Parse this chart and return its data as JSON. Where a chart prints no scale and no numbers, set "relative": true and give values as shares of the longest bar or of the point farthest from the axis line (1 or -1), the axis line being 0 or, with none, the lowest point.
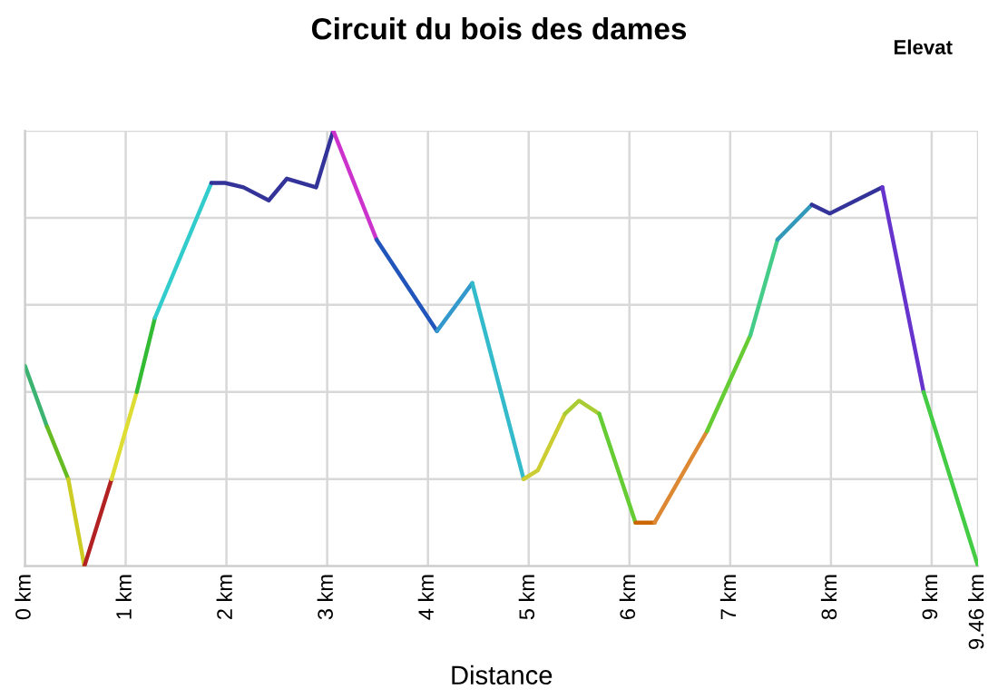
{
  "chart_data": {
    "type": "line",
    "title": "Circuit du bois des dames",
    "xlabel": "Distance",
    "annotations": [
      "Elevat"
    ],
    "relative": true,
    "series": [
      {
        "color": "#3cb371",
        "x": [
          0,
          0.22
        ],
        "values": [
          0.46,
          0.32
        ]
      },
      {
        "color": "#66bb22",
        "x": [
          0.22,
          0.43
        ],
        "values": [
          0.32,
          0.2
        ]
      },
      {
        "color": "#cccc22",
        "x": [
          0.43,
          0.59
        ],
        "values": [
          0.2,
          0
        ]
      },
      {
        "color": "#b22222",
        "x": [
          0.59,
          0.86
        ],
        "values": [
          0,
          0.2
        ]
      },
      {
        "color": "#dddd33",
        "x": [
          0.86,
          1.11
        ],
        "values": [
          0.2,
          0.4
        ]
      },
      {
        "color": "#33bb33",
        "x": [
          1.11,
          1.29
        ],
        "values": [
          0.4,
          0.57
        ]
      },
      {
        "color": "#33cccc",
        "x": [
          1.29,
          1.85
        ],
        "values": [
          0.57,
          0.88
        ]
      },
      {
        "color": "#333399",
        "x": [
          1.85,
          1.99,
          2.17,
          2.42,
          2.6,
          2.89,
          3.06
        ],
        "values": [
          0.88,
          0.88,
          0.87,
          0.84,
          0.89,
          0.87,
          1
        ]
      },
      {
        "color": "#cc33cc",
        "x": [
          3.06,
          3.49
        ],
        "values": [
          1,
          0.75
        ]
      },
      {
        "color": "#2255bb",
        "x": [
          3.49,
          4.09
        ],
        "values": [
          0.75,
          0.54
        ]
      },
      {
        "color": "#3399cc",
        "x": [
          4.09,
          4.44
        ],
        "values": [
          0.54,
          0.65
        ]
      },
      {
        "color": "#33bbcc",
        "x": [
          4.44,
          4.95
        ],
        "values": [
          0.65,
          0.2
        ]
      },
      {
        "color": "#cccc33",
        "x": [
          4.95,
          5.09,
          5.36
        ],
        "values": [
          0.2,
          0.22,
          0.35
        ]
      },
      {
        "color": "#aacc33",
        "x": [
          5.36,
          5.5,
          5.7
        ],
        "values": [
          0.35,
          0.38,
          0.35
        ]
      },
      {
        "color": "#66cc33",
        "x": [
          5.7,
          6.06
        ],
        "values": [
          0.35,
          0.1
        ]
      },
      {
        "color": "#cc6600",
        "x": [
          6.06,
          6.25
        ],
        "values": [
          0.1,
          0.1
        ]
      },
      {
        "color": "#dd8833",
        "x": [
          6.25,
          6.77
        ],
        "values": [
          0.1,
          0.31
        ]
      },
      {
        "color": "#66cc33",
        "x": [
          6.77,
          7.2
        ],
        "values": [
          0.31,
          0.53
        ]
      },
      {
        "color": "#44cc88",
        "x": [
          7.2,
          7.47
        ],
        "values": [
          0.53,
          0.75
        ]
      },
      {
        "color": "#3399bb",
        "x": [
          7.47,
          7.81
        ],
        "values": [
          0.75,
          0.83
        ]
      },
      {
        "color": "#333399",
        "x": [
          7.81,
          7.99,
          8.51
        ],
        "values": [
          0.83,
          0.81,
          0.87
        ]
      },
      {
        "color": "#6633cc",
        "x": [
          8.51,
          8.92
        ],
        "values": [
          0.87,
          0.4
        ]
      },
      {
        "color": "#44cc44",
        "x": [
          8.92,
          9.46
        ],
        "values": [
          0.4,
          0
        ]
      }
    ],
    "xlim": [
      0,
      9.46
    ],
    "xticks": [
      {
        "value": 0,
        "label": "0 km"
      },
      {
        "value": 1,
        "label": "1 km"
      },
      {
        "value": 2,
        "label": "2 km"
      },
      {
        "value": 3,
        "label": "3 km"
      },
      {
        "value": 4,
        "label": "4 km"
      },
      {
        "value": 5,
        "label": "5 km"
      },
      {
        "value": 6,
        "label": "6 km"
      },
      {
        "value": 7,
        "label": "7 km"
      },
      {
        "value": 8,
        "label": "8 km"
      },
      {
        "value": 9,
        "label": "9 km"
      },
      {
        "value": 9.46,
        "label": "9.46 km"
      }
    ],
    "grid": true
  }
}
